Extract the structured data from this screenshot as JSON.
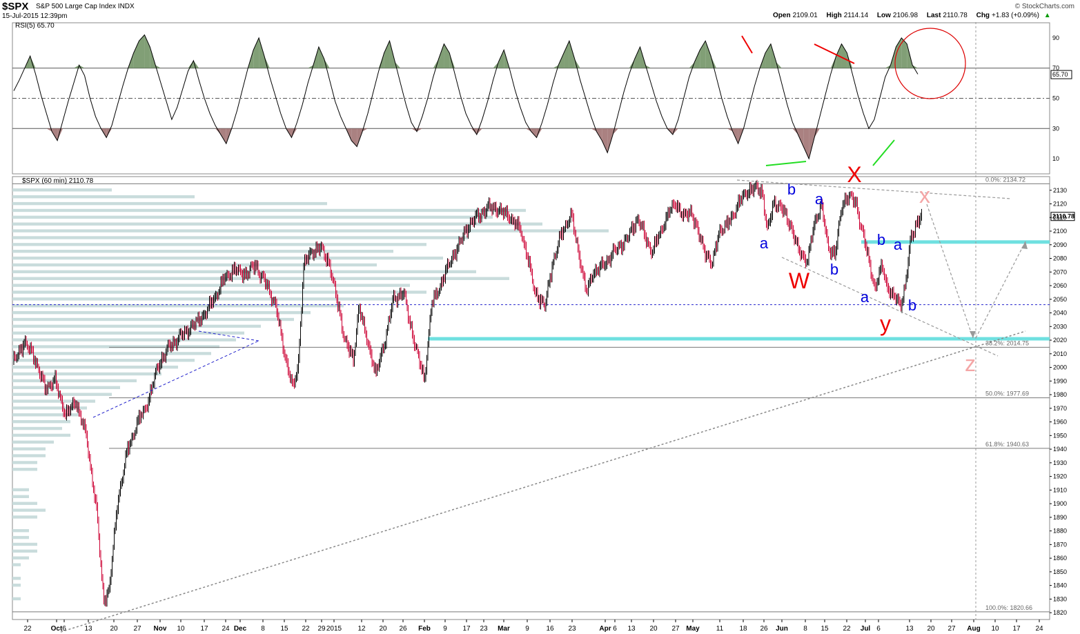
{
  "header": {
    "symbol": "$SPX",
    "name": "S&P 500 Large Cap Index",
    "exchange": "INDX",
    "date": "15-Jul-2015 12:39pm",
    "brand": "© StockCharts.com",
    "open_label": "Open",
    "open": "2109.01",
    "high_label": "High",
    "high": "2114.14",
    "low_label": "Low",
    "low": "2106.98",
    "last_label": "Last",
    "last": "2110.78",
    "chg_label": "Chg",
    "chg": "+1.83 (+0.09%)",
    "chg_arrow": "▲"
  },
  "colors": {
    "up_bar": "#000000",
    "down_bar": "#cc0033",
    "rsi_line": "#000000",
    "rsi_overbought_fill": "#6b8e5e",
    "rsi_oversold_fill": "#9b6b6b",
    "volume_by_price": "#c9dcdc",
    "cyan_zone": "#6fe0e0",
    "wave_blue": "#0000dd",
    "wave_red": "#ee0000",
    "wave_pink": "#f4a6a6",
    "trend_green": "#22dd22",
    "circle_red": "#dd0000",
    "support_blue": "#2222cc"
  },
  "chart_data": [
    {
      "type": "line",
      "title": "RSI(5) 65.70",
      "indicator": "RSI",
      "period": 5,
      "last_value": "65.70",
      "ylim": [
        0,
        100
      ],
      "yticks": [
        "90",
        "70",
        "50",
        "30",
        "10"
      ],
      "reference_lines": [
        70,
        50,
        30
      ],
      "values": [
        55,
        62,
        70,
        78,
        66,
        52,
        40,
        28,
        22,
        35,
        48,
        60,
        72,
        65,
        50,
        38,
        30,
        24,
        32,
        45,
        58,
        70,
        80,
        88,
        92,
        84,
        72,
        60,
        48,
        36,
        44,
        56,
        68,
        75,
        62,
        50,
        40,
        32,
        26,
        20,
        30,
        42,
        56,
        70,
        82,
        90,
        78,
        64,
        52,
        40,
        30,
        24,
        34,
        46,
        60,
        72,
        84,
        76,
        62,
        48,
        38,
        30,
        22,
        18,
        28,
        40,
        54,
        68,
        80,
        88,
        74,
        60,
        46,
        34,
        28,
        38,
        50,
        64,
        76,
        86,
        80,
        66,
        52,
        40,
        32,
        26,
        36,
        48,
        62,
        74,
        82,
        70,
        56,
        44,
        34,
        28,
        24,
        34,
        46,
        60,
        72,
        80,
        88,
        76,
        62,
        50,
        38,
        28,
        22,
        14,
        26,
        40,
        54,
        66,
        76,
        84,
        72,
        60,
        48,
        38,
        30,
        26,
        36,
        50,
        64,
        74,
        82,
        88,
        78,
        64,
        50,
        38,
        28,
        20,
        30,
        44,
        58,
        70,
        80,
        86,
        74,
        60,
        46,
        34,
        26,
        18,
        10,
        24,
        38,
        52,
        66,
        78,
        86,
        80,
        66,
        52,
        40,
        30,
        36,
        50,
        64,
        72,
        84,
        90,
        86,
        72,
        66
      ]
    },
    {
      "type": "candlestick",
      "title": "$SPX (60 min) 2110.78",
      "interval": "60 min",
      "last_value": "2110.78",
      "ylim": [
        1815,
        2140
      ],
      "yticks": [
        "2130",
        "2120",
        "2110",
        "2100",
        "2090",
        "2080",
        "2070",
        "2060",
        "2050",
        "2040",
        "2030",
        "2020",
        "2010",
        "2000",
        "1990",
        "1980",
        "1970",
        "1960",
        "1950",
        "1940",
        "1930",
        "1920",
        "1910",
        "1900",
        "1890",
        "1880",
        "1870",
        "1860",
        "1850",
        "1840",
        "1830",
        "1820"
      ],
      "xlabels": [
        "22",
        "Oct",
        "6",
        "13",
        "20",
        "27",
        "Nov",
        "10",
        "17",
        "24",
        "Dec",
        "8",
        "15",
        "22",
        "29",
        "2015",
        "12",
        "20",
        "26",
        "Feb",
        "9",
        "17",
        "23",
        "Mar",
        "9",
        "16",
        "23",
        "Apr",
        "6",
        "13",
        "20",
        "27",
        "May",
        "11",
        "18",
        "26",
        "Jun",
        "8",
        "15",
        "22",
        "Jul",
        "6",
        "13",
        "20",
        "27",
        "Aug",
        "10",
        "17",
        "24"
      ],
      "xtick_positions": [
        40,
        82,
        93,
        128,
        165,
        199,
        232,
        262,
        296,
        327,
        348,
        381,
        412,
        443,
        466,
        484,
        524,
        555,
        584,
        615,
        645,
        676,
        701,
        730,
        764,
        797,
        829,
        877,
        891,
        915,
        947,
        979,
        1004,
        1043,
        1077,
        1107,
        1133,
        1167,
        1195,
        1227,
        1254,
        1273,
        1318,
        1349,
        1379,
        1411,
        1442,
        1473,
        1506
      ],
      "price_anchors": [
        [
          20,
          2005
        ],
        [
          35,
          2018
        ],
        [
          48,
          2010
        ],
        [
          65,
          1985
        ],
        [
          80,
          1990
        ],
        [
          95,
          1965
        ],
        [
          110,
          1975
        ],
        [
          125,
          1950
        ],
        [
          140,
          1895
        ],
        [
          150,
          1830
        ],
        [
          158,
          1835
        ],
        [
          170,
          1900
        ],
        [
          185,
          1940
        ],
        [
          200,
          1960
        ],
        [
          215,
          1975
        ],
        [
          228,
          2000
        ],
        [
          245,
          2015
        ],
        [
          260,
          2022
        ],
        [
          278,
          2030
        ],
        [
          295,
          2038
        ],
        [
          310,
          2050
        ],
        [
          325,
          2065
        ],
        [
          340,
          2072
        ],
        [
          355,
          2068
        ],
        [
          370,
          2075
        ],
        [
          385,
          2062
        ],
        [
          400,
          2045
        ],
        [
          412,
          2010
        ],
        [
          425,
          1985
        ],
        [
          432,
          2000
        ],
        [
          440,
          2075
        ],
        [
          452,
          2085
        ],
        [
          465,
          2088
        ],
        [
          478,
          2075
        ],
        [
          490,
          2045
        ],
        [
          500,
          2020
        ],
        [
          512,
          2005
        ],
        [
          520,
          2045
        ],
        [
          532,
          2020
        ],
        [
          545,
          1995
        ],
        [
          558,
          2020
        ],
        [
          570,
          2050
        ],
        [
          585,
          2055
        ],
        [
          595,
          2030
        ],
        [
          605,
          2010
        ],
        [
          615,
          1990
        ],
        [
          625,
          2045
        ],
        [
          638,
          2060
        ],
        [
          650,
          2075
        ],
        [
          665,
          2090
        ],
        [
          680,
          2105
        ],
        [
          695,
          2112
        ],
        [
          710,
          2118
        ],
        [
          725,
          2115
        ],
        [
          740,
          2110
        ],
        [
          755,
          2100
        ],
        [
          765,
          2080
        ],
        [
          775,
          2055
        ],
        [
          790,
          2045
        ],
        [
          800,
          2075
        ],
        [
          815,
          2100
        ],
        [
          828,
          2112
        ],
        [
          840,
          2080
        ],
        [
          850,
          2055
        ],
        [
          860,
          2070
        ],
        [
          875,
          2075
        ],
        [
          890,
          2085
        ],
        [
          905,
          2092
        ],
        [
          915,
          2100
        ],
        [
          925,
          2110
        ],
        [
          935,
          2095
        ],
        [
          945,
          2085
        ],
        [
          958,
          2100
        ],
        [
          970,
          2115
        ],
        [
          980,
          2120
        ],
        [
          992,
          2110
        ],
        [
          1002,
          2115
        ],
        [
          1012,
          2098
        ],
        [
          1022,
          2085
        ],
        [
          1032,
          2075
        ],
        [
          1042,
          2100
        ],
        [
          1055,
          2105
        ],
        [
          1068,
          2118
        ],
        [
          1080,
          2128
        ],
        [
          1095,
          2132
        ],
        [
          1105,
          2128
        ],
        [
          1112,
          2100
        ],
        [
          1122,
          2122
        ],
        [
          1135,
          2115
        ],
        [
          1145,
          2105
        ],
        [
          1158,
          2085
        ],
        [
          1170,
          2078
        ],
        [
          1180,
          2105
        ],
        [
          1190,
          2120
        ],
        [
          1200,
          2088
        ],
        [
          1210,
          2083
        ],
        [
          1220,
          2118
        ],
        [
          1230,
          2127
        ],
        [
          1240,
          2120
        ],
        [
          1250,
          2100
        ],
        [
          1258,
          2080
        ],
        [
          1268,
          2058
        ],
        [
          1278,
          2075
        ],
        [
          1285,
          2060
        ],
        [
          1295,
          2052
        ],
        [
          1305,
          2046
        ],
        [
          1312,
          2060
        ],
        [
          1320,
          2095
        ],
        [
          1330,
          2108
        ],
        [
          1336,
          2111
        ]
      ],
      "fibonacci": [
        {
          "label": "0.0%: 2134.72",
          "value": 2134.72
        },
        {
          "label": "38.2%: 2014.75",
          "value": 2014.75
        },
        {
          "label": "50.0%: 1977.69",
          "value": 1977.69
        },
        {
          "label": "61.8%: 1940.63",
          "value": 1940.63
        },
        {
          "label": "100.0%: 1820.66",
          "value": 1820.66
        }
      ],
      "horizontal_lines": [
        {
          "name": "support-dashed",
          "value": 2046
        },
        {
          "name": "cyan-zone-upper",
          "value": 2092
        },
        {
          "name": "cyan-zone-lower",
          "value": 2021
        }
      ],
      "volume_by_price": [
        [
          "2130",
          0.12
        ],
        [
          "2125",
          0.22
        ],
        [
          "2120",
          0.38
        ],
        [
          "2115",
          0.62
        ],
        [
          "2110",
          0.58
        ],
        [
          "2105",
          0.64
        ],
        [
          "2100",
          0.72
        ],
        [
          "2095",
          0.55
        ],
        [
          "2090",
          0.5
        ],
        [
          "2085",
          0.46
        ],
        [
          "2080",
          0.52
        ],
        [
          "2075",
          0.44
        ],
        [
          "2070",
          0.56
        ],
        [
          "2065",
          0.6
        ],
        [
          "2060",
          0.48
        ],
        [
          "2055",
          0.5
        ],
        [
          "2050",
          0.46
        ],
        [
          "2045",
          0.4
        ],
        [
          "2040",
          0.36
        ],
        [
          "2035",
          0.34
        ],
        [
          "2030",
          0.3
        ],
        [
          "2025",
          0.28
        ],
        [
          "2020",
          0.27
        ],
        [
          "2015",
          0.25
        ],
        [
          "2010",
          0.24
        ],
        [
          "2005",
          0.22
        ],
        [
          "2000",
          0.2
        ],
        [
          "1995",
          0.18
        ],
        [
          "1990",
          0.15
        ],
        [
          "1985",
          0.13
        ],
        [
          "1980",
          0.12
        ],
        [
          "1975",
          0.1
        ],
        [
          "1970",
          0.09
        ],
        [
          "1965",
          0.08
        ],
        [
          "1960",
          0.07
        ],
        [
          "1955",
          0.06
        ],
        [
          "1950",
          0.07
        ],
        [
          "1945",
          0.05
        ],
        [
          "1940",
          0.04
        ],
        [
          "1935",
          0.04
        ],
        [
          "1930",
          0.03
        ],
        [
          "1925",
          0.03
        ],
        [
          "1910",
          0.02
        ],
        [
          "1905",
          0.02
        ],
        [
          "1900",
          0.03
        ],
        [
          "1895",
          0.04
        ],
        [
          "1890",
          0.03
        ],
        [
          "1880",
          0.02
        ],
        [
          "1875",
          0.02
        ],
        [
          "1870",
          0.03
        ],
        [
          "1865",
          0.03
        ],
        [
          "1860",
          0.02
        ],
        [
          "1855",
          0.01
        ],
        [
          "1845",
          0.01
        ],
        [
          "1840",
          0.01
        ],
        [
          "1830",
          0.01
        ]
      ],
      "wave_labels": [
        {
          "text": "a",
          "color": "blue"
        },
        {
          "text": "b",
          "color": "blue"
        },
        {
          "text": "a",
          "color": "blue"
        },
        {
          "text": "b",
          "color": "blue"
        },
        {
          "text": "W",
          "color": "red"
        },
        {
          "text": "X",
          "color": "red"
        },
        {
          "text": "a",
          "color": "blue"
        },
        {
          "text": "b",
          "color": "blue"
        },
        {
          "text": "a",
          "color": "blue"
        },
        {
          "text": "b",
          "color": "blue"
        },
        {
          "text": "y",
          "color": "red"
        },
        {
          "text": "x",
          "color": "pink"
        },
        {
          "text": "z",
          "color": "pink"
        }
      ]
    }
  ]
}
